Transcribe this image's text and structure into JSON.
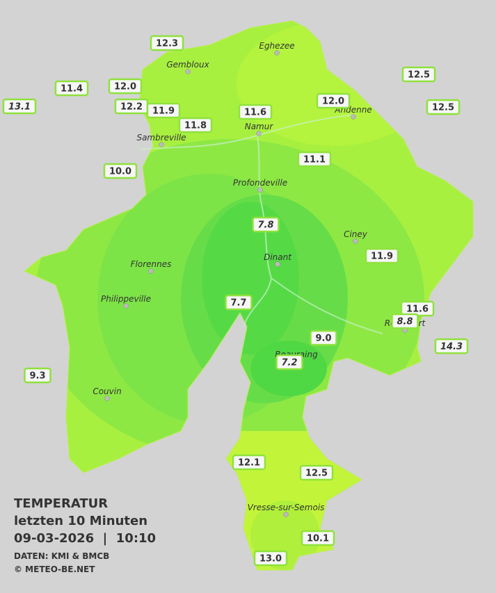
{
  "legend": {
    "title": "TEMPERATUR",
    "period": "letzten 10 Minuten",
    "datetime": "09-03-2026  |  10:10",
    "source": "DATEN: KMI & BMCB",
    "copyright": "© METEO-BE.NET"
  },
  "cities": [
    {
      "name": "Eghezee"
    },
    {
      "name": "Gembloux"
    },
    {
      "name": "Andenne"
    },
    {
      "name": "Namur"
    },
    {
      "name": "Sambreville"
    },
    {
      "name": "Profondeville"
    },
    {
      "name": "Ciney"
    },
    {
      "name": "Dinant"
    },
    {
      "name": "Florennes"
    },
    {
      "name": "Philippeville"
    },
    {
      "name": "Rochefort"
    },
    {
      "name": "Beauraing"
    },
    {
      "name": "Couvin"
    },
    {
      "name": "Vresse-sur-Semois"
    }
  ],
  "stations": [
    {
      "label": "12.3",
      "italic": false
    },
    {
      "label": "11.4",
      "italic": false
    },
    {
      "label": "12.0",
      "italic": false
    },
    {
      "label": "13.1",
      "italic": true
    },
    {
      "label": "12.2",
      "italic": false
    },
    {
      "label": "11.9",
      "italic": false
    },
    {
      "label": "11.8",
      "italic": false
    },
    {
      "label": "11.6",
      "italic": false
    },
    {
      "label": "12.0",
      "italic": false
    },
    {
      "label": "12.5",
      "italic": false
    },
    {
      "label": "12.5",
      "italic": false
    },
    {
      "label": "10.0",
      "italic": false
    },
    {
      "label": "11.1",
      "italic": false
    },
    {
      "label": "7.8",
      "italic": true
    },
    {
      "label": "11.9",
      "italic": false
    },
    {
      "label": "7.7",
      "italic": false
    },
    {
      "label": "11.6",
      "italic": false
    },
    {
      "label": "8.8",
      "italic": true
    },
    {
      "label": "9.0",
      "italic": false
    },
    {
      "label": "14.3",
      "italic": true
    },
    {
      "label": "7.2",
      "italic": true
    },
    {
      "label": "9.3",
      "italic": false
    },
    {
      "label": "12.1",
      "italic": false
    },
    {
      "label": "12.5",
      "italic": false
    },
    {
      "label": "10.1",
      "italic": false
    },
    {
      "label": "13.0",
      "italic": false
    }
  ]
}
